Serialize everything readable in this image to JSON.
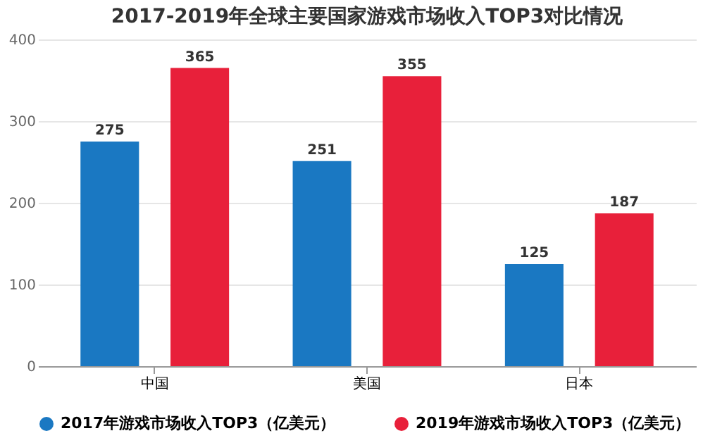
{
  "chart_data": {
    "type": "bar",
    "title": "2017-2019年全球主要国家游戏市场收入TOP3对比情况",
    "categories": [
      "中国",
      "美国",
      "日本"
    ],
    "series": [
      {
        "name": "2017年游戏市场收入TOP3（亿美元）",
        "color": "#1a78c2",
        "values": [
          275,
          251,
          125
        ]
      },
      {
        "name": "2019年游戏市场收入TOP3（亿美元）",
        "color": "#e8203a",
        "values": [
          365,
          355,
          187
        ]
      }
    ],
    "ylim": [
      0,
      400
    ],
    "yticks": [
      0,
      100,
      200,
      300,
      400
    ],
    "grid": "y",
    "legend": "bottom",
    "data_labels": true
  }
}
